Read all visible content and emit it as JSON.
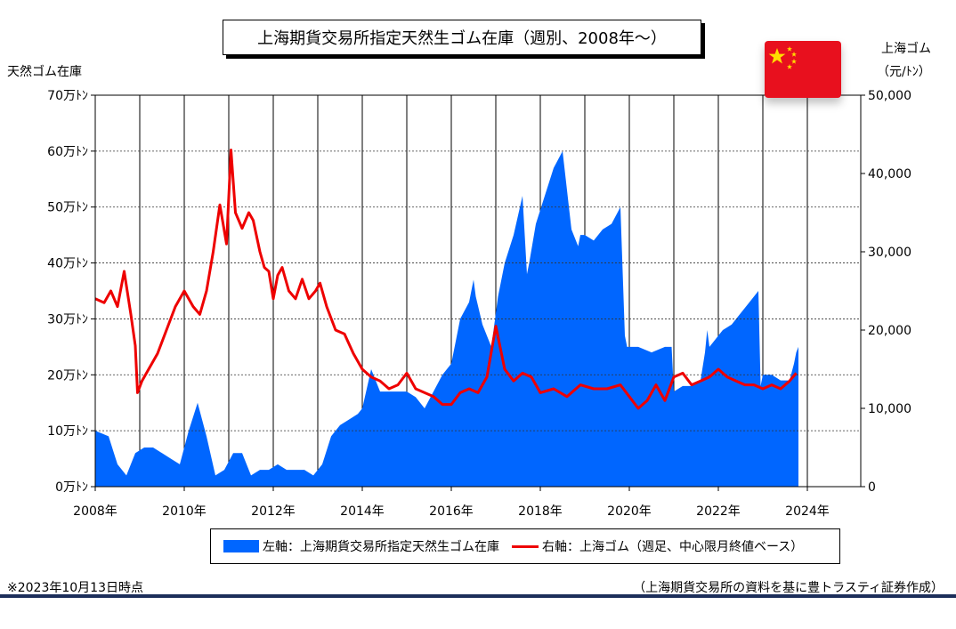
{
  "title": "上海期貨交易所指定天然生ゴム在庫（週別、2008年～）",
  "left_axis_label": "天然ゴム在庫",
  "right_axis_label_line1": "上海ゴム",
  "right_axis_label_line2": "（元/ﾄﾝ）",
  "legend": {
    "area_label": "左軸：上海期貨交易所指定天然生ゴム在庫",
    "line_label": "右軸：上海ゴム（週足、中心限月終値ベース）"
  },
  "note_left": "※2023年10月13日時点",
  "note_right": "（上海期貨交易所の資料を基に豊トラスティ証券作成）",
  "flag_icon": "china-flag-icon",
  "chart_data": {
    "type": "area",
    "x_ticks": [
      "2008年",
      "2010年",
      "2012年",
      "2014年",
      "2016年",
      "2018年",
      "2020年",
      "2022年",
      "2024年"
    ],
    "x_range": [
      2008,
      2025.2
    ],
    "left_ticks": [
      "0万ﾄﾝ",
      "10万ﾄﾝ",
      "20万ﾄﾝ",
      "30万ﾄﾝ",
      "40万ﾄﾝ",
      "50万ﾄﾝ",
      "60万ﾄﾝ",
      "70万ﾄﾝ"
    ],
    "left_range": [
      0,
      70
    ],
    "right_ticks": [
      "0",
      "10,000",
      "20,000",
      "30,000",
      "40,000",
      "50,000"
    ],
    "right_range": [
      0,
      50000
    ],
    "grid": true,
    "colors": {
      "area": "#0066ff",
      "line": "#ee0000"
    },
    "series": [
      {
        "name": "左軸：上海期貨交易所指定天然生ゴム在庫",
        "axis": "left",
        "x": [
          2008.0,
          2008.3,
          2008.5,
          2008.7,
          2008.9,
          2009.1,
          2009.3,
          2009.5,
          2009.7,
          2009.9,
          2010.1,
          2010.3,
          2010.5,
          2010.7,
          2010.9,
          2011.1,
          2011.3,
          2011.5,
          2011.7,
          2011.9,
          2012.1,
          2012.3,
          2012.5,
          2012.7,
          2012.9,
          2013.1,
          2013.3,
          2013.5,
          2013.7,
          2013.9,
          2014.0,
          2014.2,
          2014.4,
          2014.6,
          2014.8,
          2015.0,
          2015.2,
          2015.4,
          2015.6,
          2015.8,
          2016.0,
          2016.2,
          2016.4,
          2016.5,
          2016.55,
          2016.7,
          2016.9,
          2017.0,
          2017.05,
          2017.2,
          2017.4,
          2017.6,
          2017.7,
          2017.75,
          2017.9,
          2018.1,
          2018.3,
          2018.5,
          2018.7,
          2018.85,
          2018.9,
          2019.0,
          2019.2,
          2019.4,
          2019.6,
          2019.8,
          2019.9,
          2019.95,
          2020.2,
          2020.5,
          2020.8,
          2020.95,
          2021.0,
          2021.2,
          2021.4,
          2021.6,
          2021.7,
          2021.75,
          2021.8,
          2021.9,
          2022.1,
          2022.3,
          2022.5,
          2022.7,
          2022.9,
          2022.95,
          2023.0,
          2023.2,
          2023.4,
          2023.6,
          2023.7,
          2023.75,
          2023.8
        ],
        "values": [
          10,
          9,
          4,
          2,
          6,
          7,
          7,
          6,
          5,
          4,
          10,
          15,
          9,
          2,
          3,
          6,
          6,
          2,
          3,
          3,
          4,
          3,
          3,
          3,
          2,
          4,
          9,
          11,
          12,
          13,
          14,
          21,
          17,
          17,
          17,
          17,
          16,
          14,
          17,
          20,
          22,
          30,
          33,
          37,
          34,
          29,
          25,
          31,
          34,
          40,
          45,
          52,
          38,
          40,
          47,
          52,
          57,
          60,
          46,
          43,
          45,
          45,
          44,
          46,
          47,
          50,
          27,
          25,
          25,
          24,
          25,
          25,
          17,
          18,
          18,
          19,
          24,
          28,
          25,
          26,
          28,
          29,
          31,
          33,
          35,
          18,
          20,
          20,
          19,
          19,
          22,
          24,
          25
        ]
      },
      {
        "name": "右軸：上海ゴム（週足、中心限月終値ベース）",
        "axis": "right",
        "x": [
          2008.0,
          2008.2,
          2008.35,
          2008.5,
          2008.65,
          2008.8,
          2008.9,
          2008.95,
          2009.05,
          2009.2,
          2009.4,
          2009.6,
          2009.8,
          2010.0,
          2010.2,
          2010.35,
          2010.5,
          2010.65,
          2010.8,
          2010.95,
          2011.05,
          2011.15,
          2011.3,
          2011.45,
          2011.55,
          2011.7,
          2011.8,
          2011.9,
          2012.0,
          2012.1,
          2012.2,
          2012.35,
          2012.5,
          2012.65,
          2012.8,
          2012.95,
          2013.05,
          2013.2,
          2013.4,
          2013.6,
          2013.8,
          2014.0,
          2014.2,
          2014.4,
          2014.6,
          2014.8,
          2015.0,
          2015.2,
          2015.4,
          2015.6,
          2015.8,
          2016.0,
          2016.2,
          2016.4,
          2016.6,
          2016.8,
          2017.0,
          2017.2,
          2017.4,
          2017.6,
          2017.8,
          2018.0,
          2018.3,
          2018.6,
          2018.9,
          2019.2,
          2019.5,
          2019.8,
          2020.0,
          2020.2,
          2020.4,
          2020.6,
          2020.8,
          2021.0,
          2021.2,
          2021.4,
          2021.6,
          2021.8,
          2022.0,
          2022.2,
          2022.4,
          2022.6,
          2022.8,
          2023.0,
          2023.2,
          2023.4,
          2023.6,
          2023.75
        ],
        "values": [
          24000,
          23500,
          25000,
          23000,
          27500,
          22000,
          18000,
          12000,
          13500,
          15000,
          17000,
          20000,
          23000,
          25000,
          23000,
          22000,
          25000,
          30000,
          36000,
          31000,
          43000,
          35000,
          33000,
          35000,
          34000,
          30000,
          28000,
          27500,
          24000,
          27000,
          28000,
          25000,
          24000,
          26500,
          24000,
          25000,
          26000,
          23000,
          20000,
          19500,
          17000,
          15000,
          14000,
          13500,
          12500,
          13000,
          14500,
          12500,
          12000,
          11500,
          10500,
          10500,
          12000,
          12500,
          12000,
          14000,
          20500,
          15000,
          13500,
          14500,
          14000,
          12000,
          12500,
          11500,
          13000,
          12500,
          12500,
          13000,
          11500,
          10000,
          11000,
          13000,
          11000,
          14000,
          14500,
          13000,
          13500,
          14000,
          15000,
          14000,
          13500,
          13000,
          13000,
          12500,
          13000,
          12500,
          13500,
          14500
        ]
      }
    ]
  }
}
